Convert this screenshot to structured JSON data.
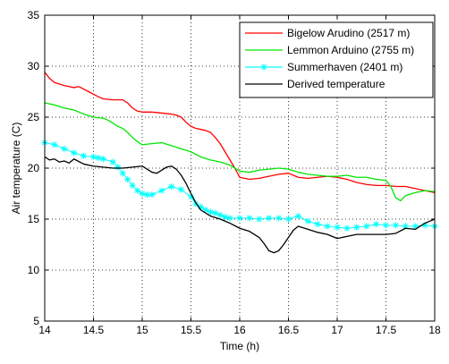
{
  "chart_data": {
    "type": "line",
    "xlabel": "Time (h)",
    "ylabel": "Air temperature (C)",
    "xlim": [
      14,
      18
    ],
    "ylim": [
      5,
      35
    ],
    "xticks": [
      14,
      14.5,
      15,
      15.5,
      16,
      16.5,
      17,
      17.5,
      18
    ],
    "xtick_labels": [
      "14",
      "14.5",
      "15",
      "15.5",
      "16",
      "16.5",
      "17",
      "17.5",
      "18"
    ],
    "yticks": [
      5,
      10,
      15,
      20,
      25,
      30,
      35
    ],
    "ytick_labels": [
      "5",
      "10",
      "15",
      "20",
      "25",
      "30",
      "35"
    ],
    "grid": true,
    "legend_position": "top-right",
    "series": [
      {
        "name": "Bigelow Arudino (2517 m)",
        "color": "#ff0000",
        "marker": "none",
        "x": [
          14.0,
          14.05,
          14.1,
          14.2,
          14.3,
          14.35,
          14.45,
          14.55,
          14.6,
          14.7,
          14.8,
          14.85,
          14.9,
          14.95,
          15.0,
          15.1,
          15.2,
          15.3,
          15.35,
          15.4,
          15.45,
          15.5,
          15.55,
          15.6,
          15.65,
          15.7,
          15.75,
          15.8,
          15.85,
          15.9,
          15.95,
          16.0,
          16.1,
          16.2,
          16.3,
          16.4,
          16.5,
          16.6,
          16.7,
          16.8,
          16.9,
          17.0,
          17.1,
          17.2,
          17.3,
          17.4,
          17.5,
          17.6,
          17.7,
          17.8,
          17.9,
          18.0
        ],
        "y": [
          29.4,
          28.8,
          28.4,
          28.1,
          27.9,
          28.0,
          27.5,
          27.0,
          26.8,
          26.7,
          26.7,
          26.4,
          25.9,
          25.6,
          25.5,
          25.5,
          25.4,
          25.3,
          25.2,
          25.0,
          24.5,
          24.1,
          23.9,
          23.8,
          23.7,
          23.5,
          23.0,
          22.4,
          21.6,
          20.8,
          20.0,
          19.1,
          18.9,
          19.0,
          19.2,
          19.4,
          19.5,
          19.1,
          19.0,
          19.1,
          19.2,
          19.1,
          18.9,
          18.6,
          18.4,
          18.3,
          18.3,
          18.2,
          18.2,
          18.0,
          17.8,
          17.6
        ]
      },
      {
        "name": "Lemmon Arduino (2755 m)",
        "color": "#00e600",
        "marker": "none",
        "x": [
          14.0,
          14.1,
          14.2,
          14.3,
          14.4,
          14.5,
          14.6,
          14.65,
          14.7,
          14.75,
          14.8,
          14.85,
          14.9,
          14.95,
          15.0,
          15.1,
          15.2,
          15.3,
          15.4,
          15.5,
          15.6,
          15.7,
          15.8,
          15.9,
          16.0,
          16.1,
          16.2,
          16.3,
          16.4,
          16.5,
          16.6,
          16.7,
          16.8,
          16.9,
          17.0,
          17.1,
          17.2,
          17.3,
          17.4,
          17.5,
          17.55,
          17.6,
          17.65,
          17.7,
          17.8,
          17.9,
          18.0
        ],
        "y": [
          26.4,
          26.2,
          25.9,
          25.7,
          25.3,
          25.0,
          24.9,
          24.7,
          24.4,
          24.1,
          23.9,
          23.5,
          23.0,
          22.6,
          22.3,
          22.4,
          22.5,
          22.2,
          21.9,
          21.6,
          21.1,
          20.8,
          20.6,
          20.3,
          19.7,
          19.6,
          19.8,
          19.9,
          20.0,
          19.9,
          19.6,
          19.4,
          19.3,
          19.2,
          19.2,
          19.3,
          19.1,
          19.1,
          18.9,
          18.8,
          18.2,
          17.1,
          16.8,
          17.3,
          17.6,
          17.8,
          17.7
        ]
      },
      {
        "name": "Summerhaven (2401 m)",
        "color": "#00ffff",
        "marker": "star",
        "x": [
          14.0,
          14.1,
          14.2,
          14.3,
          14.4,
          14.5,
          14.55,
          14.6,
          14.7,
          14.75,
          14.8,
          14.85,
          14.9,
          14.95,
          15.0,
          15.05,
          15.1,
          15.2,
          15.3,
          15.4,
          15.5,
          15.55,
          15.6,
          15.65,
          15.7,
          15.75,
          15.8,
          15.85,
          15.9,
          16.0,
          16.1,
          16.2,
          16.3,
          16.4,
          16.5,
          16.6,
          16.7,
          16.8,
          16.9,
          17.0,
          17.1,
          17.2,
          17.3,
          17.4,
          17.5,
          17.6,
          17.7,
          17.8,
          17.9,
          18.0
        ],
        "y": [
          22.5,
          22.3,
          21.9,
          21.5,
          21.2,
          21.1,
          21.0,
          20.9,
          20.6,
          20.1,
          19.5,
          18.9,
          18.3,
          17.8,
          17.5,
          17.4,
          17.4,
          17.8,
          18.2,
          17.9,
          17.2,
          16.5,
          16.2,
          15.9,
          15.7,
          15.6,
          15.4,
          15.2,
          15.1,
          15.1,
          15.1,
          15.0,
          15.1,
          15.1,
          15.0,
          15.3,
          14.8,
          14.5,
          14.3,
          14.2,
          14.1,
          14.2,
          14.3,
          14.5,
          14.4,
          14.4,
          14.3,
          14.3,
          14.4,
          14.3
        ]
      },
      {
        "name": "Derived  temperature",
        "color": "#000000",
        "marker": "none",
        "x": [
          14.0,
          14.05,
          14.1,
          14.15,
          14.2,
          14.25,
          14.3,
          14.4,
          14.5,
          14.6,
          14.7,
          14.8,
          14.9,
          15.0,
          15.1,
          15.15,
          15.2,
          15.25,
          15.3,
          15.35,
          15.4,
          15.45,
          15.5,
          15.55,
          15.6,
          15.7,
          15.8,
          15.9,
          16.0,
          16.1,
          16.2,
          16.25,
          16.3,
          16.35,
          16.4,
          16.45,
          16.5,
          16.55,
          16.6,
          16.7,
          16.8,
          16.9,
          17.0,
          17.1,
          17.2,
          17.3,
          17.4,
          17.5,
          17.6,
          17.7,
          17.8,
          17.9,
          18.0
        ],
        "y": [
          21.1,
          20.8,
          20.9,
          20.6,
          20.7,
          20.5,
          20.9,
          20.4,
          20.2,
          20.1,
          20.0,
          20.0,
          20.1,
          20.2,
          19.6,
          19.5,
          19.8,
          20.1,
          20.2,
          19.9,
          19.3,
          18.5,
          17.5,
          16.6,
          15.9,
          15.3,
          15.0,
          14.6,
          14.1,
          13.8,
          13.2,
          12.6,
          11.9,
          11.7,
          11.9,
          12.5,
          13.2,
          13.9,
          14.3,
          14.0,
          13.7,
          13.5,
          13.1,
          13.3,
          13.5,
          13.5,
          13.5,
          13.5,
          13.6,
          14.1,
          14.0,
          14.6,
          15.0
        ]
      }
    ]
  }
}
